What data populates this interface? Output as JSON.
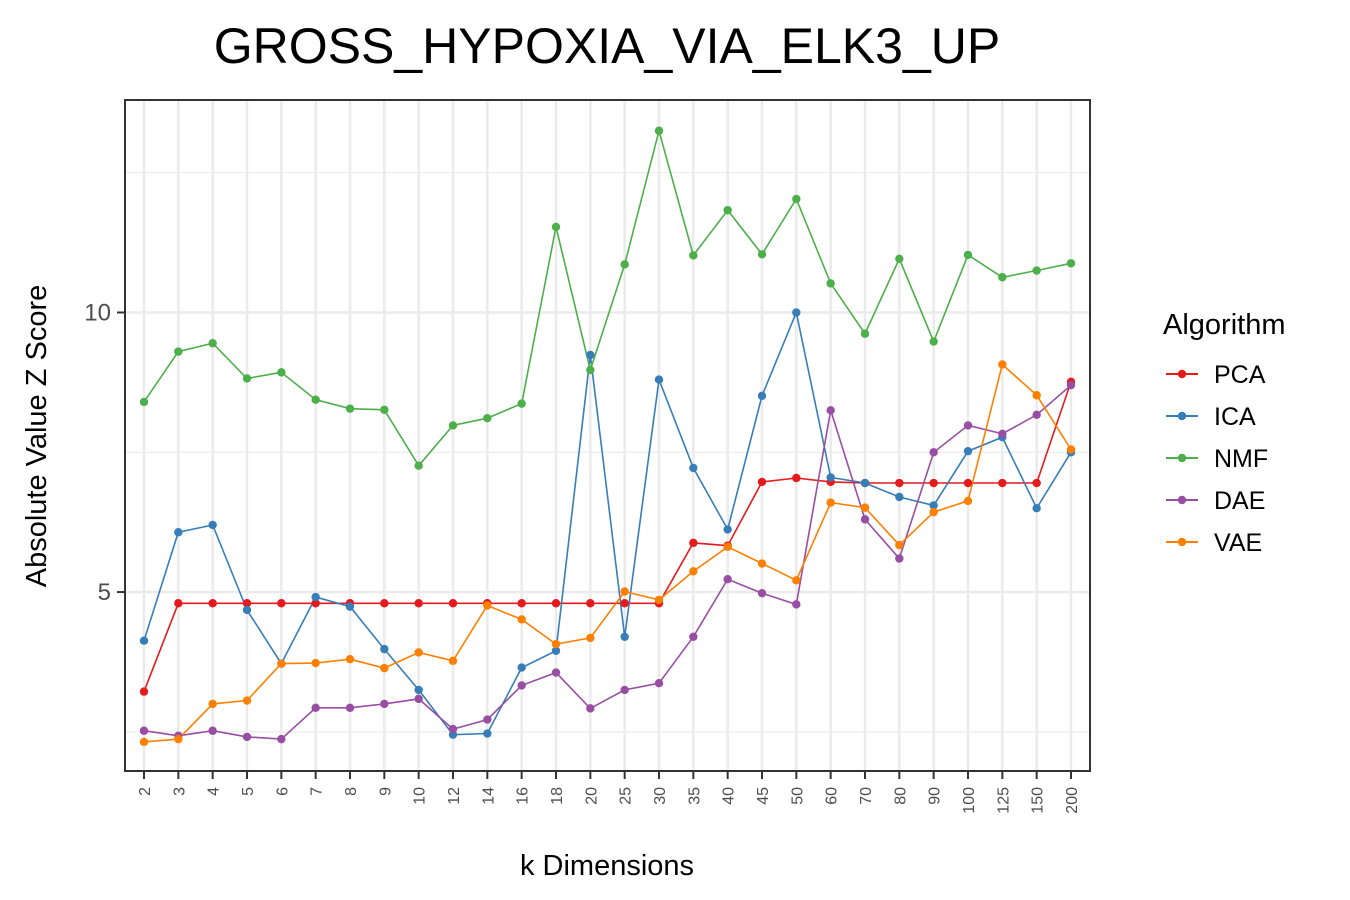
{
  "chart_data": {
    "type": "line",
    "title": "GROSS_HYPOXIA_VIA_ELK3_UP",
    "xlabel": "k Dimensions",
    "ylabel": "Absolute Value Z Score",
    "categories": [
      "2",
      "3",
      "4",
      "5",
      "6",
      "7",
      "8",
      "9",
      "10",
      "12",
      "14",
      "16",
      "18",
      "20",
      "25",
      "30",
      "35",
      "40",
      "45",
      "50",
      "60",
      "70",
      "80",
      "90",
      "100",
      "125",
      "150",
      "200"
    ],
    "ylim": [
      1.8,
      13.8
    ],
    "yticks": [
      5,
      10
    ],
    "grid": true,
    "legend": {
      "title": "Algorithm",
      "placement": "right"
    },
    "series": [
      {
        "name": "PCA",
        "color": "#e41a1c",
        "values": [
          3.22,
          4.8,
          4.8,
          4.8,
          4.8,
          4.8,
          4.8,
          4.8,
          4.8,
          4.8,
          4.8,
          4.8,
          4.8,
          4.8,
          4.8,
          4.8,
          5.88,
          5.83,
          6.97,
          7.04,
          6.97,
          6.95,
          6.95,
          6.95,
          6.95,
          6.95,
          6.95,
          8.76
        ]
      },
      {
        "name": "ICA",
        "color": "#377eb8",
        "values": [
          4.13,
          6.07,
          6.2,
          4.68,
          3.72,
          4.91,
          4.74,
          3.98,
          3.25,
          2.45,
          2.47,
          3.65,
          3.95,
          9.24,
          4.2,
          8.8,
          7.22,
          6.12,
          8.51,
          10.0,
          7.05,
          6.95,
          6.7,
          6.55,
          7.52,
          7.77,
          6.5,
          7.5
        ]
      },
      {
        "name": "NMF",
        "color": "#4daf4a",
        "values": [
          8.4,
          9.3,
          9.45,
          8.82,
          8.93,
          8.44,
          8.28,
          8.26,
          7.26,
          7.98,
          8.11,
          8.37,
          11.53,
          8.97,
          10.86,
          13.25,
          11.02,
          11.83,
          11.04,
          12.03,
          10.52,
          9.62,
          10.96,
          9.48,
          11.03,
          10.63,
          10.75,
          10.88
        ]
      },
      {
        "name": "DAE",
        "color": "#984ea3",
        "values": [
          2.52,
          2.43,
          2.52,
          2.41,
          2.37,
          2.93,
          2.93,
          3.0,
          3.09,
          2.55,
          2.72,
          3.33,
          3.56,
          2.92,
          3.25,
          3.37,
          4.2,
          5.23,
          4.98,
          4.78,
          8.25,
          6.3,
          5.6,
          7.5,
          7.98,
          7.83,
          8.17,
          8.7
        ]
      },
      {
        "name": "VAE",
        "color": "#ff7f00",
        "values": [
          2.32,
          2.37,
          3.0,
          3.06,
          3.72,
          3.73,
          3.8,
          3.64,
          3.92,
          3.77,
          4.76,
          4.51,
          4.07,
          4.18,
          5.01,
          4.86,
          5.37,
          5.81,
          5.51,
          5.21,
          6.6,
          6.51,
          5.84,
          6.43,
          6.63,
          9.07,
          8.52,
          7.55
        ]
      }
    ]
  }
}
